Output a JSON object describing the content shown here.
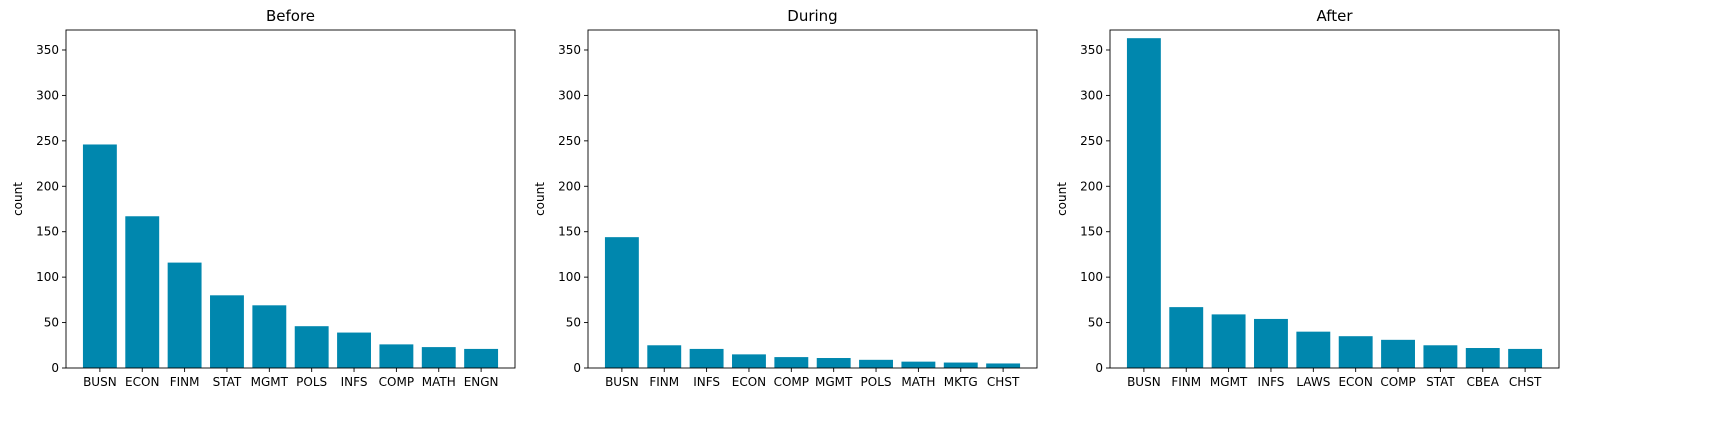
{
  "bar_color": "#0087ae",
  "chart_data": [
    {
      "type": "bar",
      "title": "Before",
      "xlabel": "",
      "ylabel": "count",
      "ylim": [
        0,
        372
      ],
      "yticks": [
        0,
        50,
        100,
        150,
        200,
        250,
        300,
        350
      ],
      "categories": [
        "BUSN",
        "ECON",
        "FINM",
        "STAT",
        "MGMT",
        "POLS",
        "INFS",
        "COMP",
        "MATH",
        "ENGN"
      ],
      "values": [
        246,
        167,
        116,
        80,
        69,
        46,
        39,
        26,
        23,
        21
      ]
    },
    {
      "type": "bar",
      "title": "During",
      "xlabel": "",
      "ylabel": "count",
      "ylim": [
        0,
        372
      ],
      "yticks": [
        0,
        50,
        100,
        150,
        200,
        250,
        300,
        350
      ],
      "categories": [
        "BUSN",
        "FINM",
        "INFS",
        "ECON",
        "COMP",
        "MGMT",
        "POLS",
        "MATH",
        "MKTG",
        "CHST"
      ],
      "values": [
        144,
        25,
        21,
        15,
        12,
        11,
        9,
        7,
        6,
        5
      ]
    },
    {
      "type": "bar",
      "title": "After",
      "xlabel": "",
      "ylabel": "count",
      "ylim": [
        0,
        372
      ],
      "yticks": [
        0,
        50,
        100,
        150,
        200,
        250,
        300,
        350
      ],
      "categories": [
        "BUSN",
        "FINM",
        "MGMT",
        "INFS",
        "LAWS",
        "ECON",
        "COMP",
        "STAT",
        "CBEA",
        "CHST"
      ],
      "values": [
        363,
        67,
        59,
        54,
        40,
        35,
        31,
        25,
        22,
        21
      ]
    }
  ]
}
